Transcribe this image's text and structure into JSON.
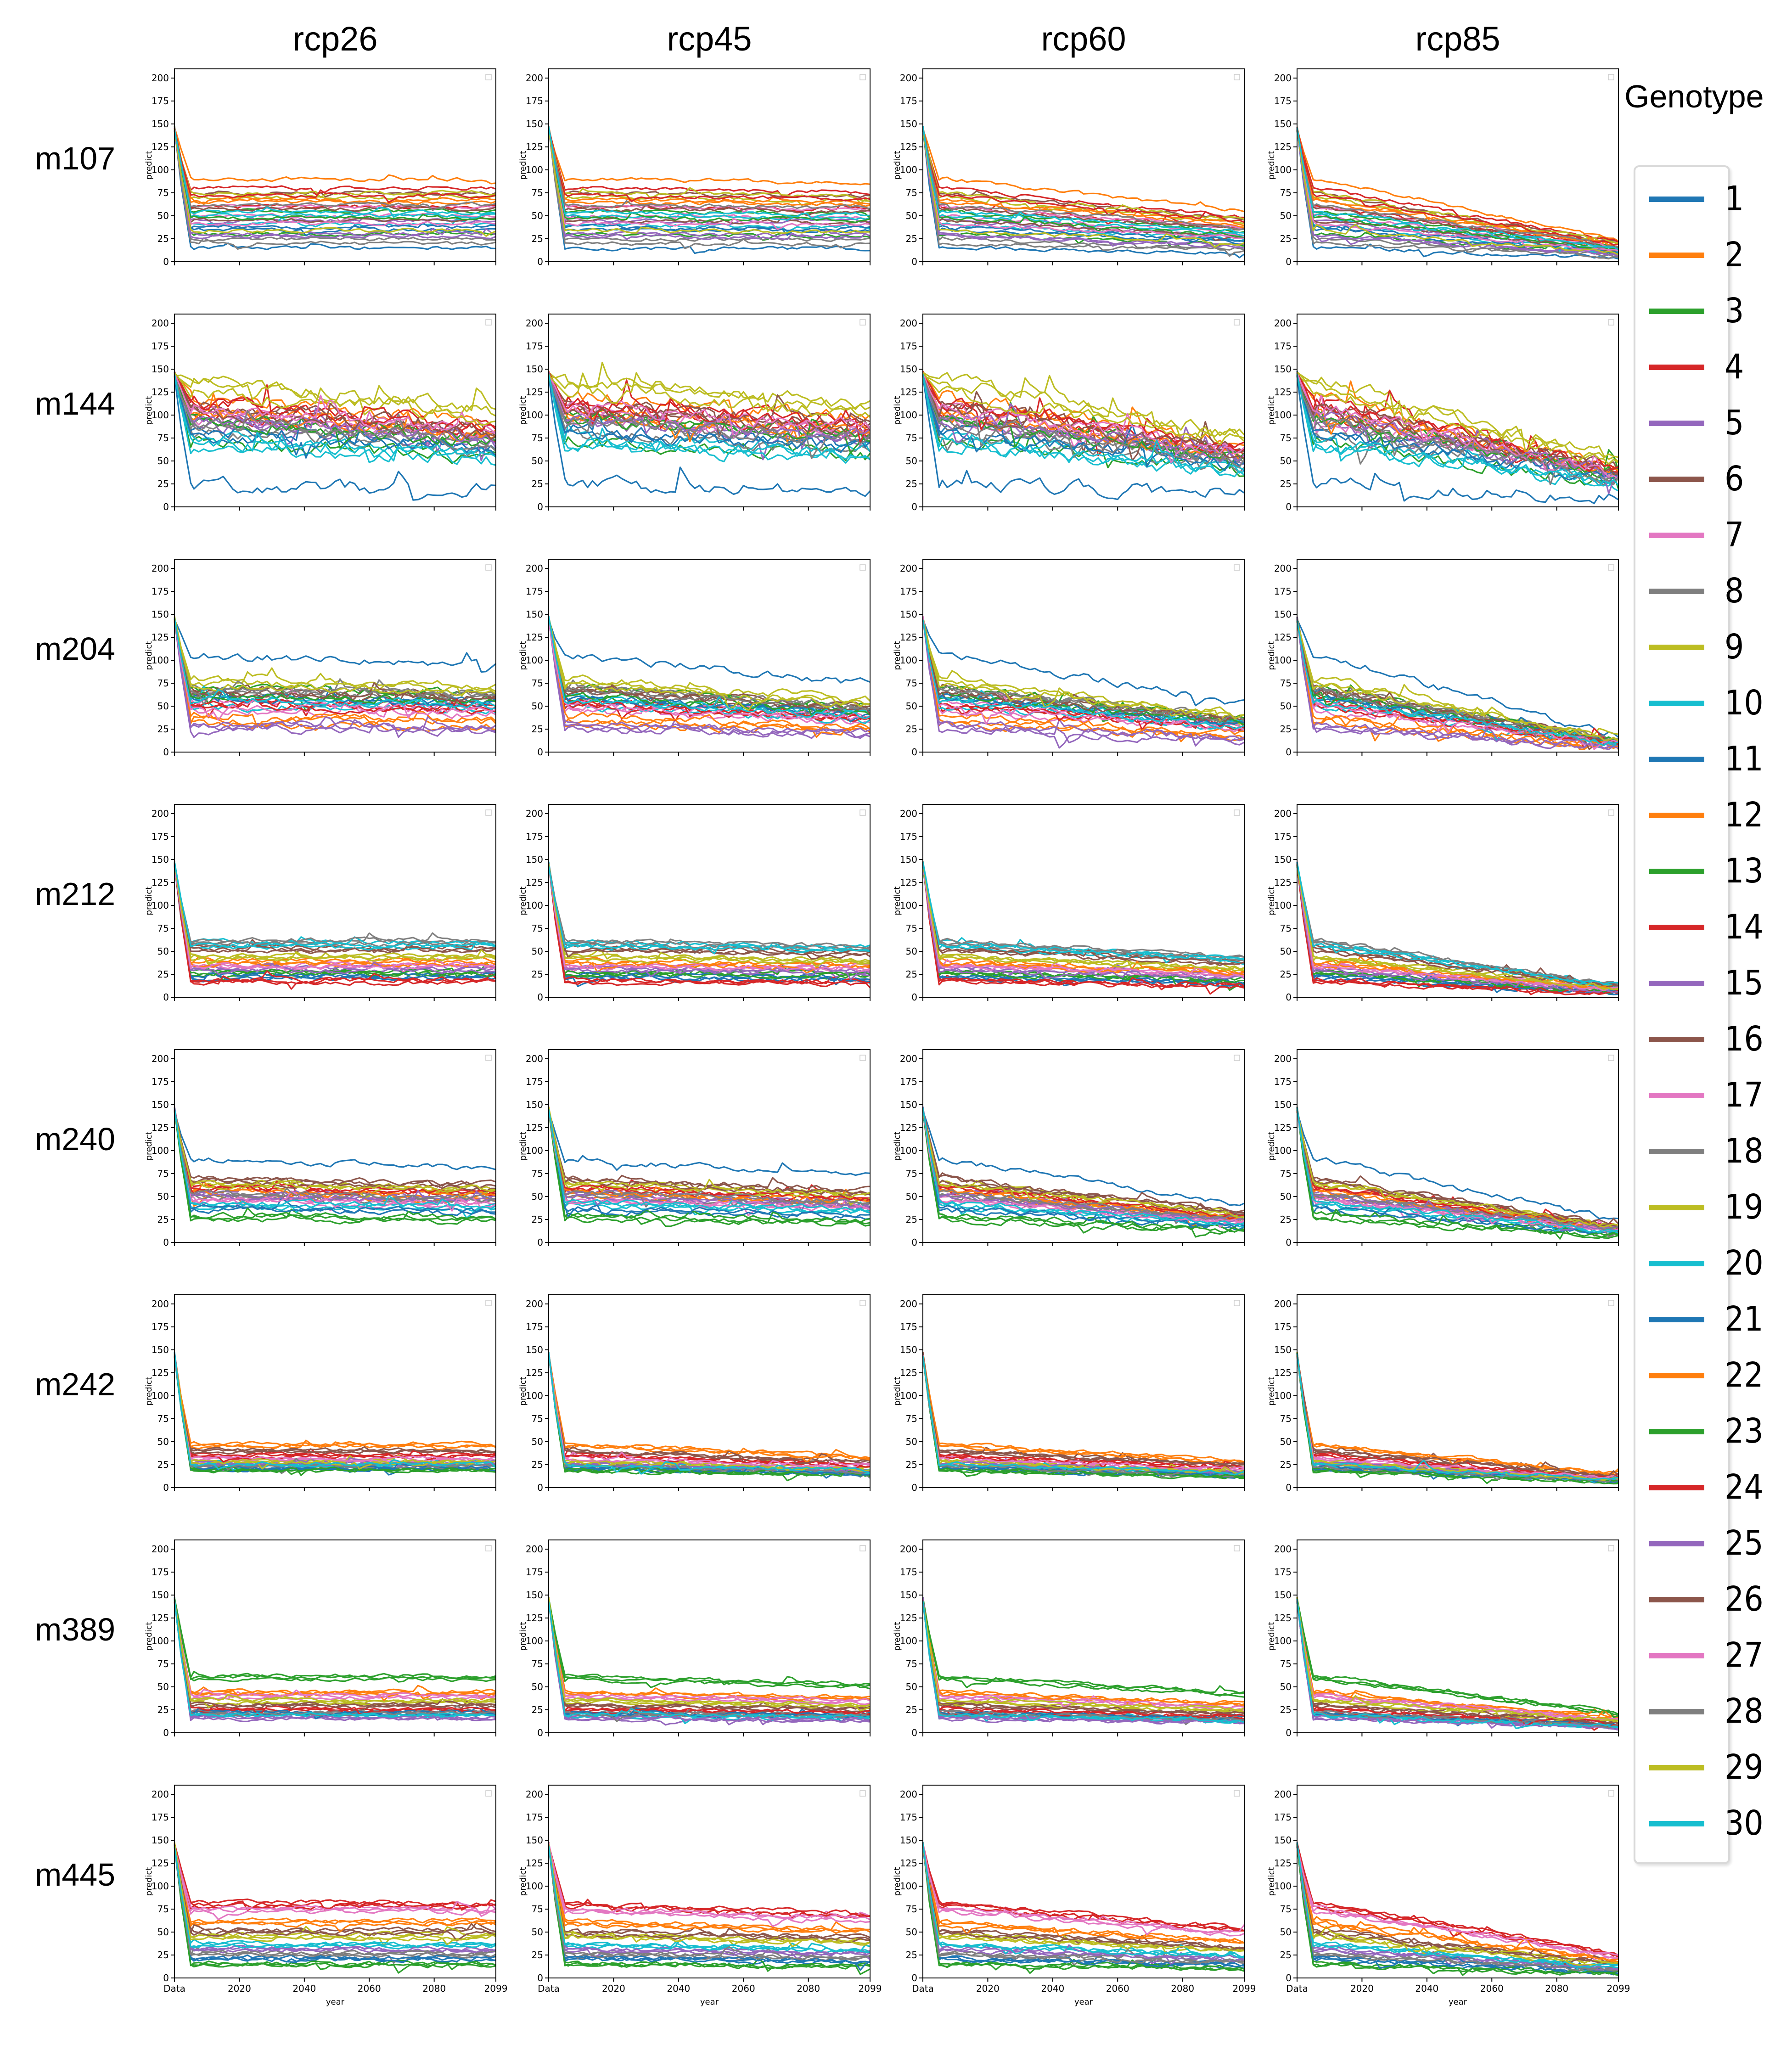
{
  "chart_data": {
    "type": "line",
    "title": "",
    "scenarios": [
      "rcp26",
      "rcp45",
      "rcp60",
      "rcp85"
    ],
    "models": [
      "m107",
      "m144",
      "m204",
      "m212",
      "m240",
      "m242",
      "m389",
      "m445"
    ],
    "xlabel": "year",
    "ylabel": "predict",
    "x_tick_labels": [
      "Data",
      "2020",
      "2040",
      "2060",
      "2080",
      "2099"
    ],
    "x_ticks": [
      2000,
      2020,
      2040,
      2060,
      2080,
      2099
    ],
    "xlim": [
      2000,
      2099
    ],
    "ylim": [
      0,
      210
    ],
    "y_ticks": [
      0,
      25,
      50,
      75,
      100,
      125,
      150,
      175,
      200
    ],
    "legend_title": "Genotype",
    "legend_placement": "right",
    "series_names": [
      "1",
      "2",
      "3",
      "4",
      "5",
      "6",
      "7",
      "8",
      "9",
      "10",
      "11",
      "12",
      "13",
      "14",
      "15",
      "16",
      "17",
      "18",
      "19",
      "20",
      "21",
      "22",
      "23",
      "24",
      "25",
      "26",
      "27",
      "28",
      "29",
      "30"
    ],
    "series_colors": [
      "#1f77b4",
      "#ff7f0e",
      "#2ca02c",
      "#d62728",
      "#9467bd",
      "#8c564b",
      "#e377c2",
      "#7f7f7f",
      "#bcbd22",
      "#17becf",
      "#1f77b4",
      "#ff7f0e",
      "#2ca02c",
      "#d62728",
      "#9467bd",
      "#8c564b",
      "#e377c2",
      "#7f7f7f",
      "#bcbd22",
      "#17becf",
      "#1f77b4",
      "#ff7f0e",
      "#2ca02c",
      "#d62728",
      "#9467bd",
      "#8c564b",
      "#e377c2",
      "#7f7f7f",
      "#bcbd22",
      "#17becf"
    ],
    "series_start_value": 145,
    "panels": {
      "m107": {
        "level": [
          15,
          90,
          30,
          60,
          45,
          75,
          50,
          25,
          70,
          40,
          35,
          65,
          55,
          80,
          30,
          45,
          60,
          20,
          75,
          50,
          38,
          68,
          48,
          72,
          28,
          58,
          42,
          62,
          34,
          54
        ],
        "end": {
          "rcp26": 1.0,
          "rcp45": 0.95,
          "rcp60": 0.6,
          "rcp85": 0.25
        },
        "noise": 4
      },
      "m144": {
        "level": [
          25,
          120,
          70,
          100,
          90,
          110,
          95,
          80,
          140,
          75,
          85,
          105,
          100,
          115,
          95,
          110,
          105,
          90,
          135,
          65,
          80,
          100,
          95,
          112,
          98,
          104,
          108,
          92,
          125,
          70
        ],
        "end": {
          "rcp26": 0.75,
          "rcp45": 0.8,
          "rcp60": 0.55,
          "rcp85": 0.35
        },
        "noise": 14
      },
      "m204": {
        "level": [
          105,
          30,
          60,
          55,
          25,
          70,
          45,
          65,
          80,
          50,
          60,
          35,
          70,
          50,
          30,
          65,
          55,
          70,
          75,
          60,
          58,
          40,
          62,
          52,
          28,
          66,
          50,
          68,
          72,
          56
        ],
        "end": {
          "rcp26": 0.9,
          "rcp45": 0.7,
          "rcp60": 0.5,
          "rcp85": 0.15
        },
        "noise": 8
      },
      "m212": {
        "level": [
          20,
          40,
          25,
          18,
          30,
          55,
          35,
          60,
          45,
          60,
          22,
          38,
          28,
          16,
          32,
          50,
          33,
          58,
          42,
          55,
          24,
          36,
          26,
          19,
          29,
          52,
          34,
          62,
          44,
          57
        ],
        "end": {
          "rcp26": 1.0,
          "rcp45": 0.9,
          "rcp60": 0.7,
          "rcp85": 0.2
        },
        "noise": 5
      },
      "m240": {
        "level": [
          90,
          50,
          25,
          60,
          55,
          70,
          45,
          50,
          65,
          40,
          35,
          55,
          30,
          58,
          52,
          68,
          48,
          52,
          62,
          42,
          38,
          56,
          28,
          60,
          50,
          66,
          46,
          54,
          64,
          44
        ],
        "end": {
          "rcp26": 0.9,
          "rcp45": 0.8,
          "rcp60": 0.45,
          "rcp85": 0.25
        },
        "noise": 6
      },
      "m242": {
        "level": [
          20,
          45,
          18,
          35,
          25,
          40,
          30,
          22,
          28,
          25,
          21,
          48,
          19,
          36,
          26,
          41,
          31,
          23,
          29,
          24,
          22,
          46,
          20,
          34,
          27,
          39,
          32,
          24,
          27,
          26
        ],
        "end": {
          "rcp26": 1.0,
          "rcp45": 0.7,
          "rcp60": 0.6,
          "rcp85": 0.3
        },
        "noise": 4
      },
      "m389": {
        "level": [
          20,
          45,
          60,
          25,
          15,
          30,
          40,
          22,
          35,
          18,
          21,
          42,
          58,
          24,
          16,
          29,
          38,
          23,
          33,
          19,
          22,
          44,
          62,
          26,
          17,
          31,
          41,
          21,
          36,
          20
        ],
        "end": {
          "rcp26": 1.0,
          "rcp45": 0.85,
          "rcp60": 0.7,
          "rcp85": 0.35
        },
        "noise": 4
      },
      "m445": {
        "level": [
          20,
          60,
          15,
          80,
          30,
          50,
          75,
          25,
          45,
          35,
          22,
          62,
          16,
          78,
          32,
          52,
          72,
          27,
          47,
          37,
          21,
          58,
          14,
          82,
          31,
          48,
          76,
          26,
          44,
          36
        ],
        "end": {
          "rcp26": 1.0,
          "rcp45": 0.85,
          "rcp60": 0.65,
          "rcp85": 0.3
        },
        "noise": 5
      }
    }
  }
}
